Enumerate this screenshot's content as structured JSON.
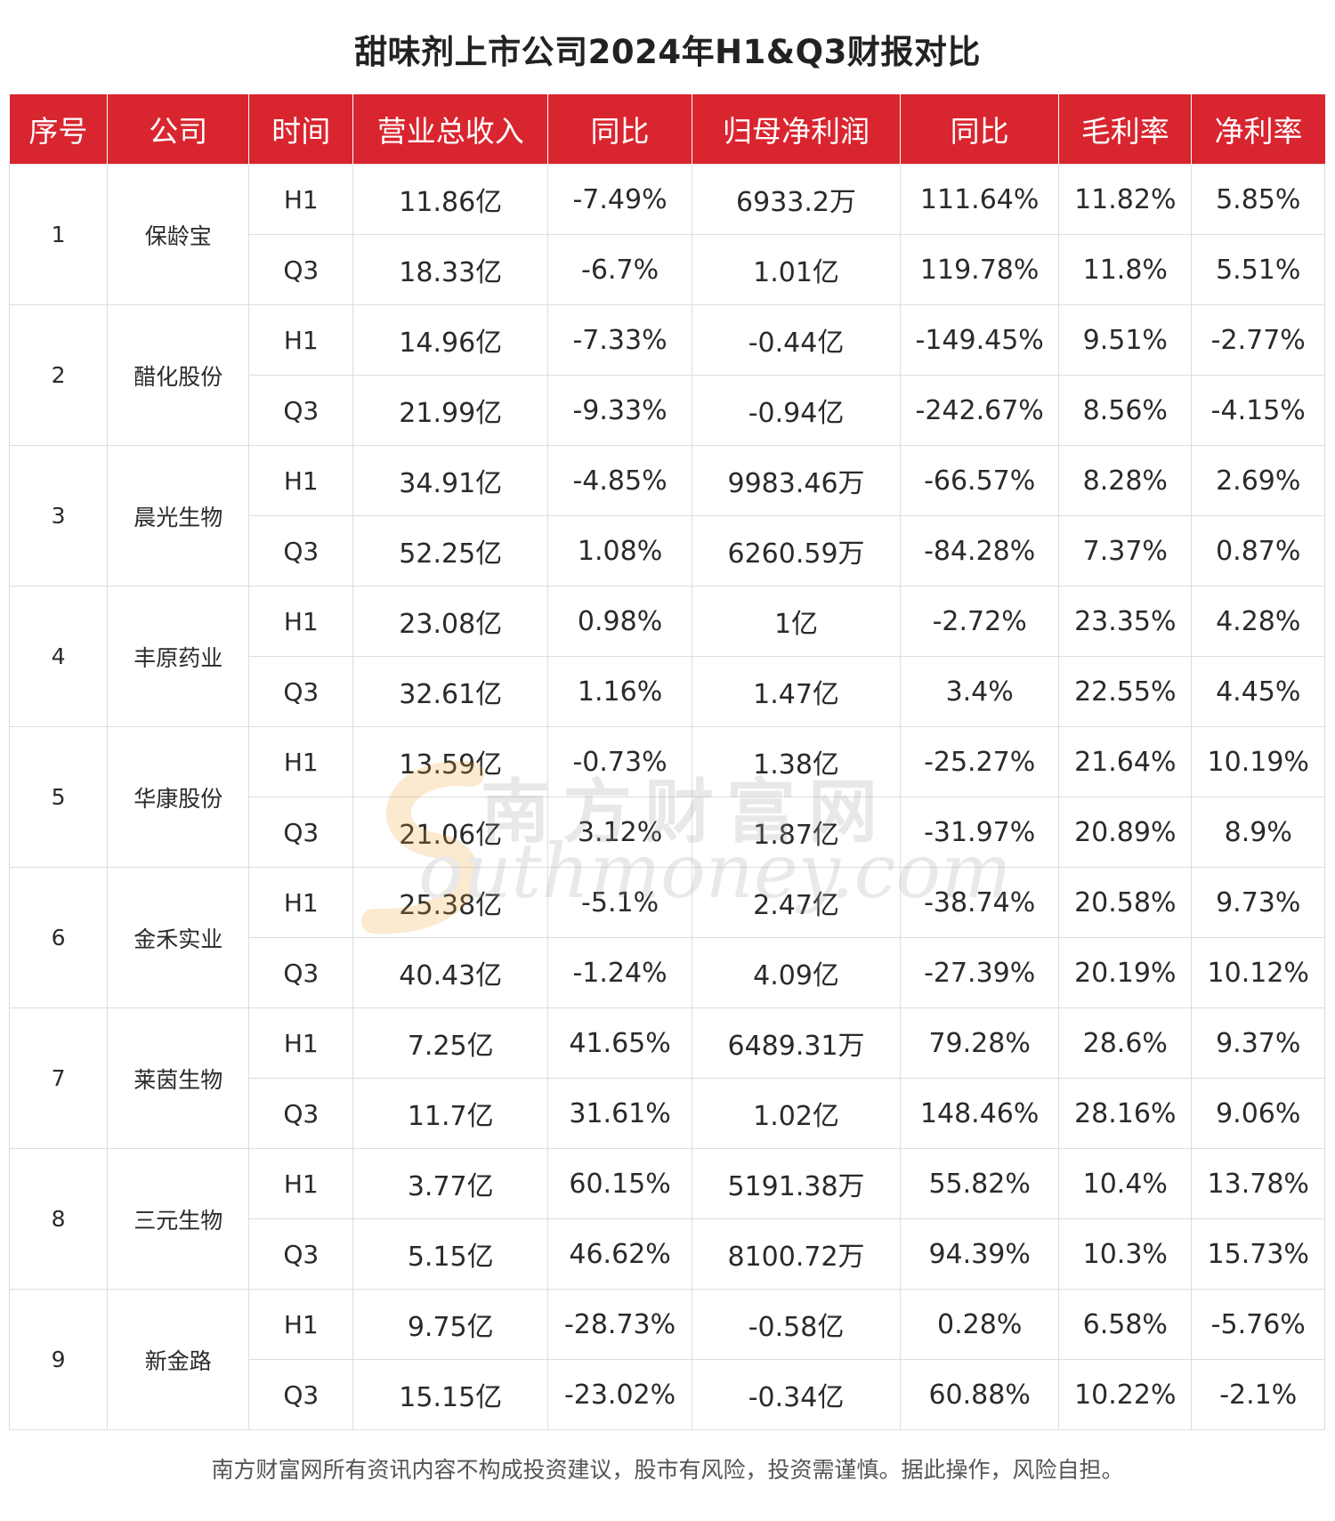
{
  "title": "甜味剂上市公司2024年H1&Q3财报对比",
  "headers": [
    "序号",
    "公司",
    "时间",
    "营业总收入",
    "同比",
    "归母净利润",
    "同比",
    "毛利率",
    "净利率"
  ],
  "companies": [
    {
      "seq": "1",
      "name": "保龄宝",
      "rows": [
        {
          "period": "H1",
          "revenue": "11.86亿",
          "revenue_yoy": "-7.49%",
          "net_profit": "6933.2万",
          "profit_yoy": "111.64%",
          "gross_margin": "11.82%",
          "net_margin": "5.85%"
        },
        {
          "period": "Q3",
          "revenue": "18.33亿",
          "revenue_yoy": "-6.7%",
          "net_profit": "1.01亿",
          "profit_yoy": "119.78%",
          "gross_margin": "11.8%",
          "net_margin": "5.51%"
        }
      ]
    },
    {
      "seq": "2",
      "name": "醋化股份",
      "rows": [
        {
          "period": "H1",
          "revenue": "14.96亿",
          "revenue_yoy": "-7.33%",
          "net_profit": "-0.44亿",
          "profit_yoy": "-149.45%",
          "gross_margin": "9.51%",
          "net_margin": "-2.77%"
        },
        {
          "period": "Q3",
          "revenue": "21.99亿",
          "revenue_yoy": "-9.33%",
          "net_profit": "-0.94亿",
          "profit_yoy": "-242.67%",
          "gross_margin": "8.56%",
          "net_margin": "-4.15%"
        }
      ]
    },
    {
      "seq": "3",
      "name": "晨光生物",
      "rows": [
        {
          "period": "H1",
          "revenue": "34.91亿",
          "revenue_yoy": "-4.85%",
          "net_profit": "9983.46万",
          "profit_yoy": "-66.57%",
          "gross_margin": "8.28%",
          "net_margin": "2.69%"
        },
        {
          "period": "Q3",
          "revenue": "52.25亿",
          "revenue_yoy": "1.08%",
          "net_profit": "6260.59万",
          "profit_yoy": "-84.28%",
          "gross_margin": "7.37%",
          "net_margin": "0.87%"
        }
      ]
    },
    {
      "seq": "4",
      "name": "丰原药业",
      "rows": [
        {
          "period": "H1",
          "revenue": "23.08亿",
          "revenue_yoy": "0.98%",
          "net_profit": "1亿",
          "profit_yoy": "-2.72%",
          "gross_margin": "23.35%",
          "net_margin": "4.28%"
        },
        {
          "period": "Q3",
          "revenue": "32.61亿",
          "revenue_yoy": "1.16%",
          "net_profit": "1.47亿",
          "profit_yoy": "3.4%",
          "gross_margin": "22.55%",
          "net_margin": "4.45%"
        }
      ]
    },
    {
      "seq": "5",
      "name": "华康股份",
      "rows": [
        {
          "period": "H1",
          "revenue": "13.59亿",
          "revenue_yoy": "-0.73%",
          "net_profit": "1.38亿",
          "profit_yoy": "-25.27%",
          "gross_margin": "21.64%",
          "net_margin": "10.19%"
        },
        {
          "period": "Q3",
          "revenue": "21.06亿",
          "revenue_yoy": "3.12%",
          "net_profit": "1.87亿",
          "profit_yoy": "-31.97%",
          "gross_margin": "20.89%",
          "net_margin": "8.9%"
        }
      ]
    },
    {
      "seq": "6",
      "name": "金禾实业",
      "rows": [
        {
          "period": "H1",
          "revenue": "25.38亿",
          "revenue_yoy": "-5.1%",
          "net_profit": "2.47亿",
          "profit_yoy": "-38.74%",
          "gross_margin": "20.58%",
          "net_margin": "9.73%"
        },
        {
          "period": "Q3",
          "revenue": "40.43亿",
          "revenue_yoy": "-1.24%",
          "net_profit": "4.09亿",
          "profit_yoy": "-27.39%",
          "gross_margin": "20.19%",
          "net_margin": "10.12%"
        }
      ]
    },
    {
      "seq": "7",
      "name": "莱茵生物",
      "rows": [
        {
          "period": "H1",
          "revenue": "7.25亿",
          "revenue_yoy": "41.65%",
          "net_profit": "6489.31万",
          "profit_yoy": "79.28%",
          "gross_margin": "28.6%",
          "net_margin": "9.37%"
        },
        {
          "period": "Q3",
          "revenue": "11.7亿",
          "revenue_yoy": "31.61%",
          "net_profit": "1.02亿",
          "profit_yoy": "148.46%",
          "gross_margin": "28.16%",
          "net_margin": "9.06%"
        }
      ]
    },
    {
      "seq": "8",
      "name": "三元生物",
      "rows": [
        {
          "period": "H1",
          "revenue": "3.77亿",
          "revenue_yoy": "60.15%",
          "net_profit": "5191.38万",
          "profit_yoy": "55.82%",
          "gross_margin": "10.4%",
          "net_margin": "13.78%"
        },
        {
          "period": "Q3",
          "revenue": "5.15亿",
          "revenue_yoy": "46.62%",
          "net_profit": "8100.72万",
          "profit_yoy": "94.39%",
          "gross_margin": "10.3%",
          "net_margin": "15.73%"
        }
      ]
    },
    {
      "seq": "9",
      "name": "新金路",
      "rows": [
        {
          "period": "H1",
          "revenue": "9.75亿",
          "revenue_yoy": "-28.73%",
          "net_profit": "-0.58亿",
          "profit_yoy": "0.28%",
          "gross_margin": "6.58%",
          "net_margin": "-5.76%"
        },
        {
          "period": "Q3",
          "revenue": "15.15亿",
          "revenue_yoy": "-23.02%",
          "net_profit": "-0.34亿",
          "profit_yoy": "60.88%",
          "gross_margin": "10.22%",
          "net_margin": "-2.1%"
        }
      ]
    }
  ],
  "watermark": {
    "cn": "南方财富网",
    "en": "outhmoney.com"
  },
  "footer": "南方财富网所有资讯内容不构成投资建议，股市有风险，投资需谨慎。据此操作，风险自担。",
  "colors": {
    "header_bg": "#d9252f",
    "header_text": "#ffffff",
    "border": "#dddddd"
  }
}
